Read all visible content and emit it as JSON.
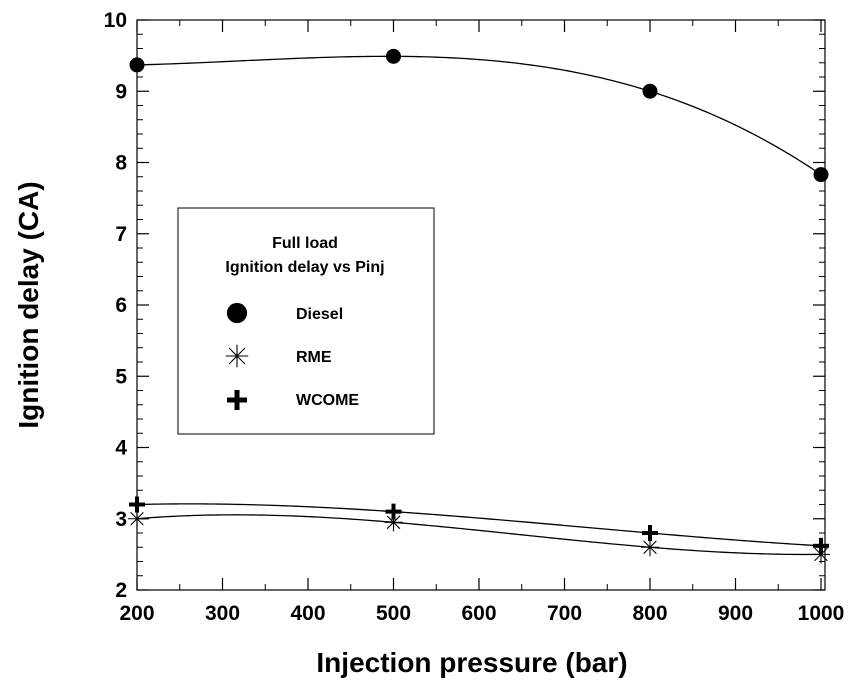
{
  "chart_data": {
    "type": "scatter",
    "xlabel": "Injection pressure (bar)",
    "ylabel": "Ignition delay (CA)",
    "xlim": [
      150,
      1050
    ],
    "ylim": [
      2,
      10
    ],
    "x_ticks": [
      200,
      300,
      400,
      500,
      600,
      700,
      800,
      900,
      1000
    ],
    "y_ticks": [
      2,
      3,
      4,
      5,
      6,
      7,
      8,
      9,
      10
    ],
    "grid": false,
    "legend": {
      "title_lines": [
        "Full load",
        "Ignition delay vs Pinj"
      ],
      "placement": "center-left",
      "entries": [
        {
          "label": "Diesel",
          "marker": "filled-circle"
        },
        {
          "label": "RME",
          "marker": "asterisk"
        },
        {
          "label": "WCOME",
          "marker": "plus"
        }
      ]
    },
    "series": [
      {
        "name": "Diesel",
        "marker": "filled-circle",
        "x": [
          200,
          500,
          800,
          1000
        ],
        "values": [
          9.37,
          9.49,
          9.0,
          7.83
        ],
        "fit": "smooth-curve"
      },
      {
        "name": "RME",
        "marker": "asterisk",
        "x": [
          200,
          500,
          800,
          1000
        ],
        "values": [
          3.0,
          2.95,
          2.6,
          2.5
        ],
        "fit": "smooth-curve"
      },
      {
        "name": "WCOME",
        "marker": "plus",
        "x": [
          200,
          500,
          800,
          1000
        ],
        "values": [
          3.2,
          3.1,
          2.8,
          2.62
        ],
        "fit": "smooth-curve"
      }
    ],
    "colors": {
      "line": "#000000",
      "marker": "#000000",
      "background": "#ffffff"
    }
  }
}
